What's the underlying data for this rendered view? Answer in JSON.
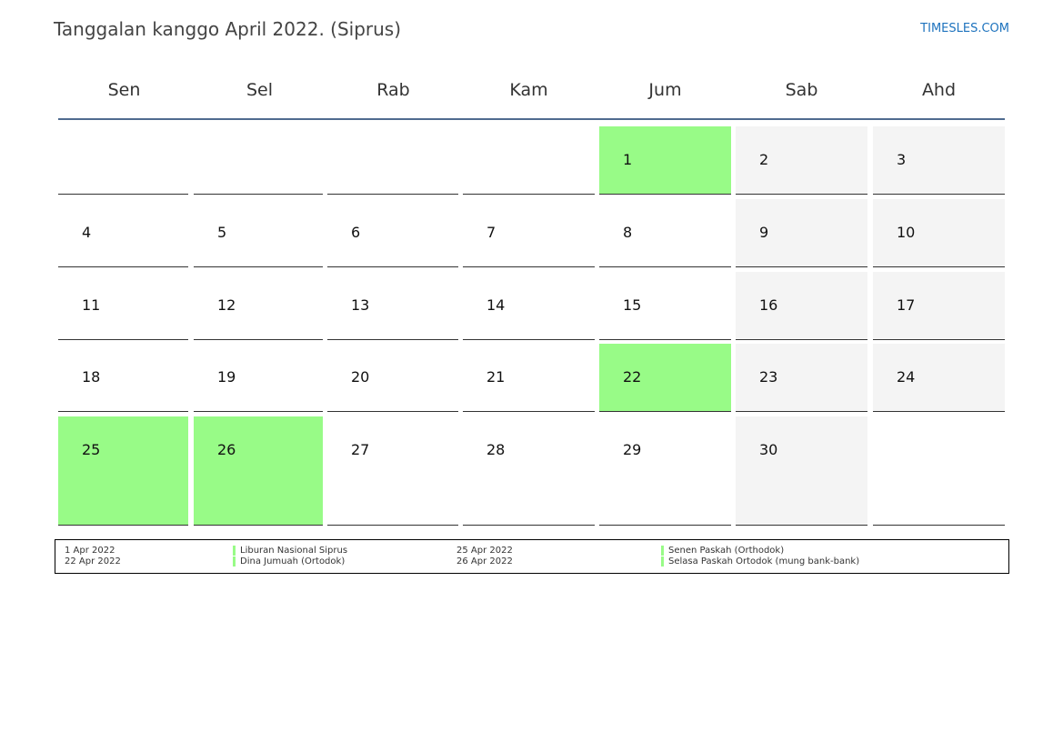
{
  "title": "Tanggalan kanggo April 2022. (Siprus)",
  "site": "TIMESLES.COM",
  "weekdays": [
    "Sen",
    "Sel",
    "Rab",
    "Kam",
    "Jum",
    "Sab",
    "Ahd"
  ],
  "colors": {
    "holiday": "#98fb87",
    "weekend": "#f4f4f4",
    "header_rule": "#4f6b8f",
    "link": "#1e73be"
  },
  "days": {
    "d1": "1",
    "d2": "2",
    "d3": "3",
    "d4": "4",
    "d5": "5",
    "d6": "6",
    "d7": "7",
    "d8": "8",
    "d9": "9",
    "d10": "10",
    "d11": "11",
    "d12": "12",
    "d13": "13",
    "d14": "14",
    "d15": "15",
    "d16": "16",
    "d17": "17",
    "d18": "18",
    "d19": "19",
    "d20": "20",
    "d21": "21",
    "d22": "22",
    "d23": "23",
    "d24": "24",
    "d25": "25",
    "d26": "26",
    "d27": "27",
    "d28": "28",
    "d29": "29",
    "d30": "30"
  },
  "legend": [
    {
      "date": "1 Apr 2022",
      "name": "Liburan Nasional Siprus"
    },
    {
      "date": "22 Apr 2022",
      "name": "Dina Jumuah (Ortodok)"
    },
    {
      "date": "25 Apr 2022",
      "name": "Senen Paskah (Orthodok)"
    },
    {
      "date": "26 Apr 2022",
      "name": "Selasa Paskah Ortodok (mung bank-bank)"
    }
  ]
}
